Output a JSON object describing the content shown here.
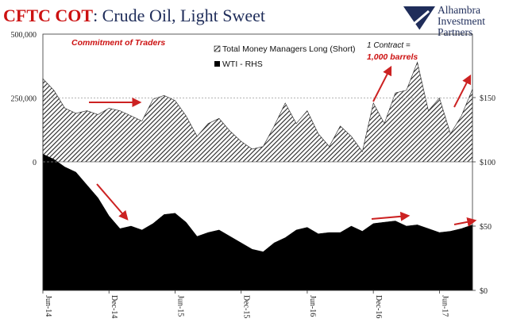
{
  "header": {
    "title_part1": "CFTC COT",
    "title_part2": ": Crude Oil, Light Sweet"
  },
  "logo": {
    "line1": "Alhambra",
    "line2": "Investment",
    "line3": "Partners"
  },
  "annotations": {
    "commitment": "Commitment of Traders",
    "contract_line1": "1 Contract =",
    "contract_line2": "1,000 barrels"
  },
  "colors": {
    "title_red": "#cc1111",
    "title_dark": "#1f2d5a",
    "arrow_red": "#cc2222",
    "series_black": "#000000"
  },
  "chart_data": {
    "type": "area",
    "x_tick_labels": [
      "Jun-14",
      "Dec-14",
      "Jun-15",
      "Dec-15",
      "Jun-16",
      "Dec-16",
      "Jun-17"
    ],
    "x_start": "2014-06",
    "x_end": "2017-09",
    "y_left": {
      "min": 0,
      "max": 500000,
      "ticks": [
        0,
        250000,
        500000
      ],
      "tick_labels": [
        "0",
        "250,000",
        "500,000"
      ]
    },
    "y_right": {
      "min": 0,
      "max": 100,
      "ticks": [
        0,
        50,
        100,
        150
      ],
      "tick_labels": [
        "$0",
        "$50",
        "$100",
        "$150"
      ]
    },
    "grid": "dashed lines at 250,000 and 0",
    "legend_position": "top-center",
    "series": [
      {
        "name": "Total Money Managers Long (Short)",
        "axis": "left",
        "style": "hatched area",
        "x": [
          "2014-06",
          "2014-07",
          "2014-08",
          "2014-09",
          "2014-10",
          "2014-11",
          "2014-12",
          "2015-01",
          "2015-02",
          "2015-03",
          "2015-04",
          "2015-05",
          "2015-06",
          "2015-07",
          "2015-08",
          "2015-09",
          "2015-10",
          "2015-11",
          "2015-12",
          "2016-01",
          "2016-02",
          "2016-03",
          "2016-04",
          "2016-05",
          "2016-06",
          "2016-07",
          "2016-08",
          "2016-09",
          "2016-10",
          "2016-11",
          "2016-12",
          "2017-01",
          "2017-02",
          "2017-03",
          "2017-04",
          "2017-05",
          "2017-06",
          "2017-07",
          "2017-08",
          "2017-09"
        ],
        "values": [
          325000,
          280000,
          210000,
          190000,
          200000,
          185000,
          210000,
          200000,
          180000,
          160000,
          245000,
          260000,
          240000,
          180000,
          100000,
          150000,
          170000,
          120000,
          80000,
          50000,
          60000,
          140000,
          230000,
          150000,
          200000,
          110000,
          60000,
          140000,
          100000,
          40000,
          230000,
          150000,
          270000,
          280000,
          390000,
          200000,
          250000,
          110000,
          180000,
          285000
        ]
      },
      {
        "name": "WTI - RHS",
        "axis": "right",
        "style": "solid area",
        "x": [
          "2014-06",
          "2014-07",
          "2014-08",
          "2014-09",
          "2014-10",
          "2014-11",
          "2014-12",
          "2015-01",
          "2015-02",
          "2015-03",
          "2015-04",
          "2015-05",
          "2015-06",
          "2015-07",
          "2015-08",
          "2015-09",
          "2015-10",
          "2015-11",
          "2015-12",
          "2016-01",
          "2016-02",
          "2016-03",
          "2016-04",
          "2016-05",
          "2016-06",
          "2016-07",
          "2016-08",
          "2016-09",
          "2016-10",
          "2016-11",
          "2016-12",
          "2017-01",
          "2017-02",
          "2017-03",
          "2017-04",
          "2017-05",
          "2017-06",
          "2017-07",
          "2017-08",
          "2017-09"
        ],
        "values": [
          106,
          102,
          96,
          92,
          82,
          72,
          58,
          48,
          50,
          47,
          52,
          59,
          60,
          53,
          42,
          45,
          47,
          42,
          37,
          32,
          30,
          37,
          41,
          47,
          49,
          44,
          45,
          45,
          50,
          46,
          52,
          53,
          54,
          50,
          51,
          48,
          45,
          46,
          48,
          51
        ]
      }
    ]
  }
}
